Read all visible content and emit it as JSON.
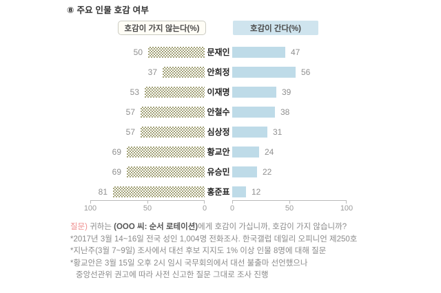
{
  "title": "⑧  주요 인물 호감 여부",
  "legend": {
    "negative_label": "호감이 가지 않는다(%)",
    "positive_label": "호감이 간다(%)"
  },
  "colors": {
    "negative_pattern": "#a3a277",
    "positive_bar": "#bedbe8",
    "positive_legend_bg": "#cfe4ee"
  },
  "chart_data": {
    "type": "bar",
    "orientation": "horizontal-diverging",
    "title": "주요 인물 호감 여부",
    "categories": [
      "문재인",
      "안희정",
      "이재명",
      "안철수",
      "심상정",
      "황교안",
      "유승민",
      "홍준표"
    ],
    "series": [
      {
        "name": "호감이 가지 않는다(%)",
        "values": [
          50,
          37,
          53,
          57,
          57,
          69,
          69,
          81
        ]
      },
      {
        "name": "호감이 간다(%)",
        "values": [
          47,
          56,
          39,
          38,
          31,
          24,
          22,
          12
        ]
      }
    ],
    "axis_left_ticks": [
      "100",
      "50",
      "0"
    ],
    "axis_right_ticks": [
      "0",
      "50",
      "100"
    ],
    "xlim_left": [
      100,
      0
    ],
    "xlim_right": [
      0,
      100
    ],
    "grid": false,
    "legend_position": "top"
  },
  "footnotes": {
    "question_label": "질문)",
    "question_pre": " 귀하는 ",
    "question_bold": "(OOO 씨: 순서 로테이션)",
    "question_post": "에게 호감이 가십니까, 호감이 가지 않습니까?",
    "lines": [
      "*2017년 3월 14~16일 전국 성인 1,004명 전화조사. 한국갤럽 데일리 오피니언 제250호",
      "*지난주(3월 7~9일) 조사에서 대선 후보 지지도 1% 이상 인물 8명에 대해 질문",
      "*황교안은 3월 15일 오후 2시 임시 국무회의에서 대선 불출마 선언했으나",
      "중앙선관위 권고에 따라 사전 신고한 질문 그대로 조사 진행"
    ]
  }
}
